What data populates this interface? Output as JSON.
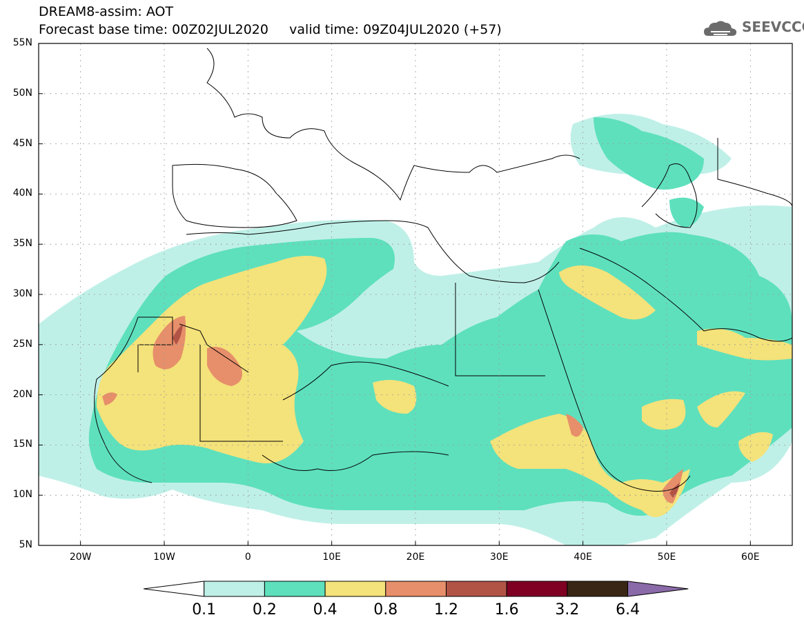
{
  "header": {
    "line1": "DREAM8-assim: AOT",
    "line2": "Forecast base time: 00Z02JUL2020     valid time: 09Z04JUL2020 (+57)"
  },
  "logo": {
    "icon": "cloud-icon",
    "text": "SEEVCCC"
  },
  "map": {
    "lat_labels": [
      "55N",
      "50N",
      "45N",
      "40N",
      "35N",
      "30N",
      "25N",
      "20N",
      "15N",
      "10N",
      "5N"
    ],
    "lon_labels": [
      "20W",
      "10W",
      "0",
      "10E",
      "20E",
      "30E",
      "40E",
      "50E",
      "60E"
    ],
    "lon_range": [
      -25,
      65
    ],
    "lat_range": [
      5,
      55
    ]
  },
  "colorbar": {
    "labels": [
      "0.1",
      "0.2",
      "0.4",
      "0.8",
      "1.2",
      "1.6",
      "3.2",
      "6.4"
    ],
    "colors": [
      "#bff0e8",
      "#5ee0bd",
      "#f4e27a",
      "#e68f6a",
      "#b15446",
      "#800024",
      "#3a2614",
      "#8a6aa8"
    ]
  },
  "levels_colors": {
    "aot_0_1_0_2": "#bff0e8",
    "aot_0_2_0_4": "#5ee0bd",
    "aot_0_4_0_8": "#f4e27a",
    "aot_0_8_1_2": "#e68f6a",
    "aot_1_2_1_6": "#b15446"
  }
}
